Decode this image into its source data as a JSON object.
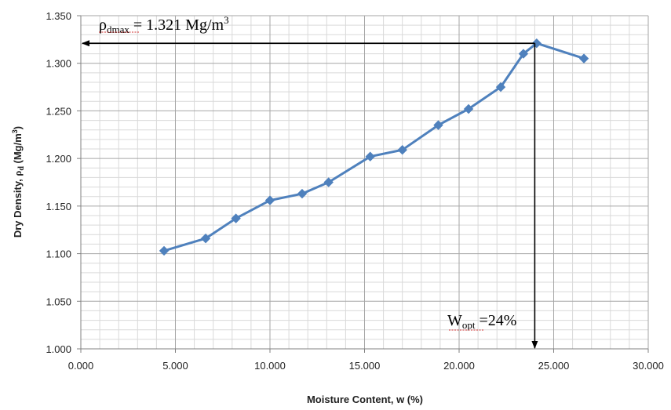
{
  "chart_data": {
    "type": "line",
    "xlabel": "Moisture Content, w (%)",
    "ylabel_text": "Dry Density, ",
    "ylabel_symbol": "ρ",
    "ylabel_sub": "d",
    "ylabel_units": " (Mg/m",
    "ylabel_units_sup": "3",
    "ylabel_units_close": ")",
    "xlim": [
      0,
      30
    ],
    "ylim": [
      1.0,
      1.35
    ],
    "x_ticks": [
      "0.000",
      "5.000",
      "10.000",
      "15.000",
      "20.000",
      "25.000",
      "30.000"
    ],
    "y_ticks": [
      "1.000",
      "1.050",
      "1.100",
      "1.150",
      "1.200",
      "1.250",
      "1.300",
      "1.350"
    ],
    "grid": true,
    "line_color": "#4F81BD",
    "series": [
      {
        "x": [
          4.4,
          6.6,
          8.2,
          10.0,
          11.7,
          13.1,
          15.3,
          17.0,
          18.9,
          20.5,
          22.2,
          23.4,
          24.1,
          26.6
        ],
        "y": [
          1.103,
          1.116,
          1.137,
          1.156,
          1.163,
          1.175,
          1.202,
          1.209,
          1.235,
          1.252,
          1.275,
          1.31,
          1.321,
          1.305
        ]
      }
    ],
    "annotations": {
      "rho_max": {
        "symbol": "ρ",
        "sub": "dmax",
        "text": " = 1.321 Mg/m",
        "sup": "3",
        "value": 1.321
      },
      "w_opt": {
        "text_main": "W",
        "sub": "opt",
        "text_rest": " =24%",
        "value": 24.0
      }
    }
  }
}
